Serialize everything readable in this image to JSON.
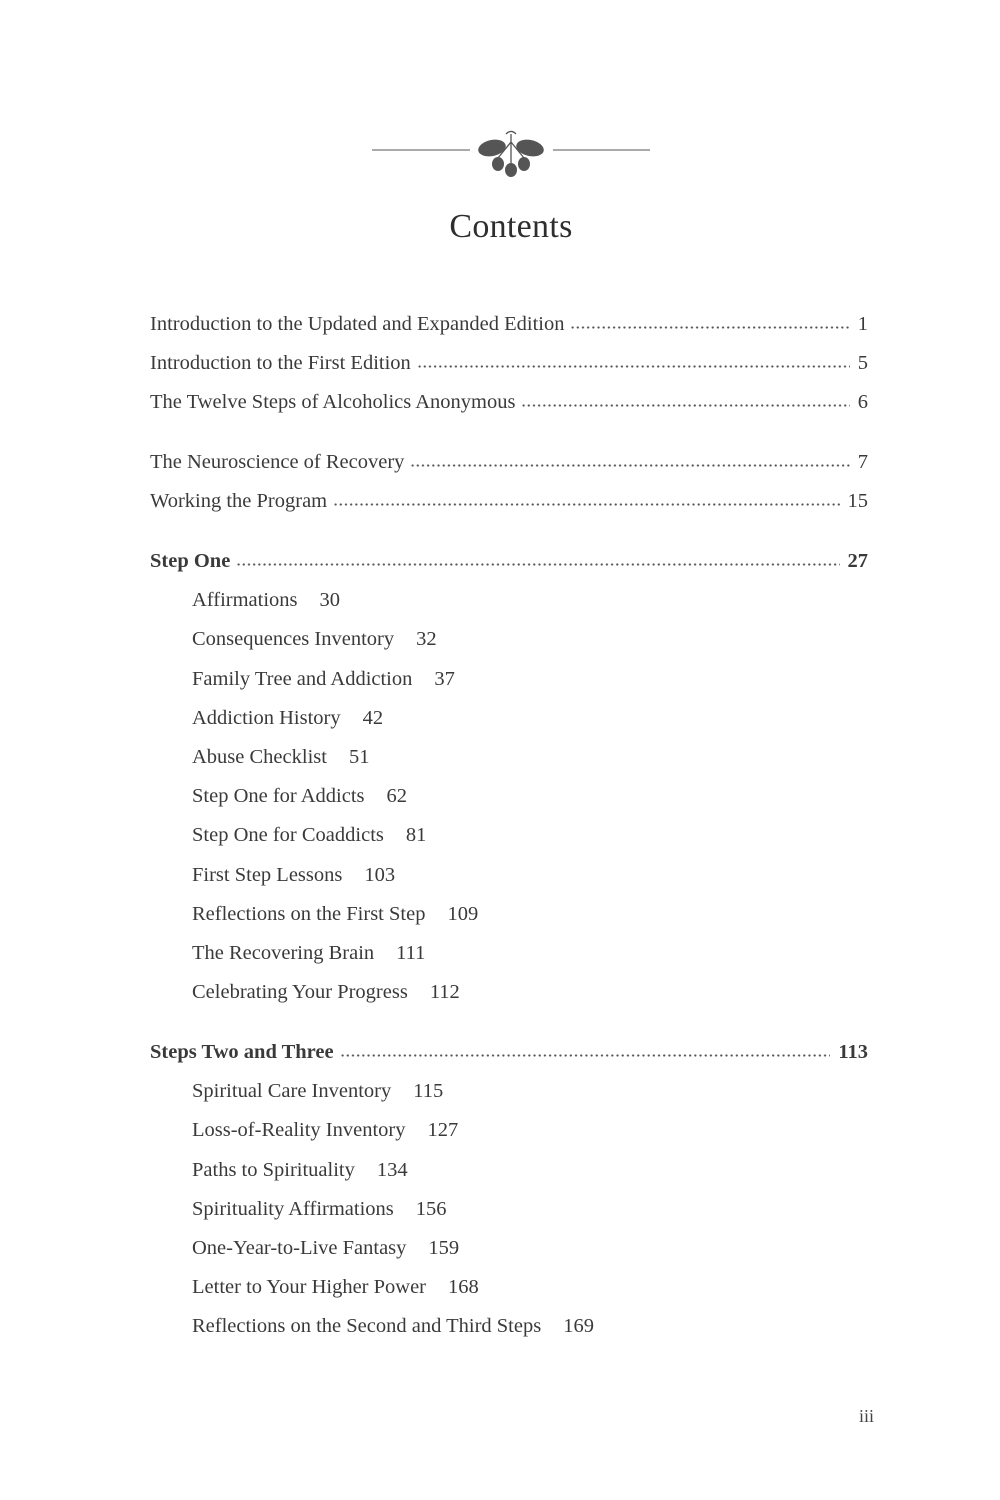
{
  "ornament": "acorn-oak-leaf-ornament",
  "title": "Contents",
  "front_matter": [
    {
      "label": "Introduction to the Updated and Expanded Edition",
      "page": "1"
    },
    {
      "label": "Introduction to the First Edition",
      "page": "5"
    },
    {
      "label": "The Twelve Steps of Alcoholics Anonymous",
      "page": "6"
    }
  ],
  "intro_chapters": [
    {
      "label": "The Neuroscience of Recovery",
      "page": "7"
    },
    {
      "label": "Working the Program",
      "page": "15"
    }
  ],
  "step_one": {
    "label": "Step One",
    "page": "27",
    "items": [
      {
        "label": "Affirmations",
        "page": "30"
      },
      {
        "label": "Consequences Inventory",
        "page": "32"
      },
      {
        "label": "Family Tree and Addiction",
        "page": "37"
      },
      {
        "label": "Addiction History",
        "page": "42"
      },
      {
        "label": "Abuse Checklist",
        "page": "51"
      },
      {
        "label": "Step One for Addicts",
        "page": "62"
      },
      {
        "label": "Step One for Coaddicts",
        "page": "81"
      },
      {
        "label": "First Step Lessons",
        "page": "103"
      },
      {
        "label": "Reflections on the First Step",
        "page": "109"
      },
      {
        "label": "The Recovering Brain",
        "page": "111"
      },
      {
        "label": "Celebrating Your Progress",
        "page": "112"
      }
    ]
  },
  "steps_two_three": {
    "label": "Steps Two and Three",
    "page": "113",
    "items": [
      {
        "label": "Spiritual Care Inventory",
        "page": "115"
      },
      {
        "label": "Loss-of-Reality Inventory",
        "page": "127"
      },
      {
        "label": "Paths to Spirituality",
        "page": "134"
      },
      {
        "label": "Spirituality Affirmations",
        "page": "156"
      },
      {
        "label": "One-Year-to-Live Fantasy",
        "page": "159"
      },
      {
        "label": "Letter to Your Higher Power",
        "page": "168"
      },
      {
        "label": "Reflections on the Second and Third Steps",
        "page": "169"
      }
    ]
  },
  "folio": "iii"
}
